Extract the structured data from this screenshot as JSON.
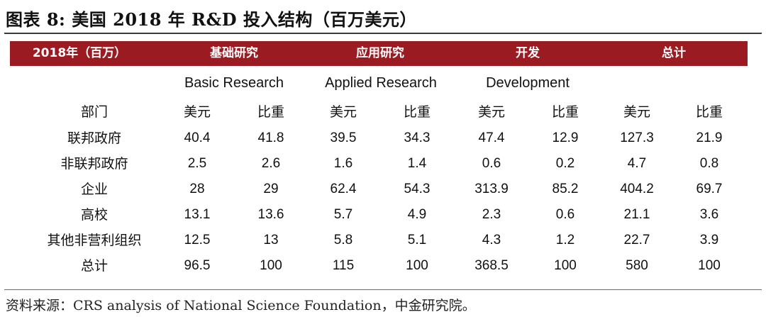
{
  "title": "图表 8: 美国 2018 年 R&D 投入结构（百万美元）",
  "table": {
    "header_row": [
      "2018年（百万）",
      "基础研究",
      "应用研究",
      "开发",
      "总计"
    ],
    "subheaders": [
      "Basic Research",
      "Applied Research",
      "Development"
    ],
    "col_labels": [
      "部门",
      "美元",
      "比重",
      "美元",
      "比重",
      "美元",
      "比重",
      "美元",
      "比重"
    ],
    "rows": [
      [
        "联邦政府",
        "40.4",
        "41.8",
        "39.5",
        "34.3",
        "47.4",
        "12.9",
        "127.3",
        "21.9"
      ],
      [
        "非联邦政府",
        "2.5",
        "2.6",
        "1.6",
        "1.4",
        "0.6",
        "0.2",
        "4.7",
        "0.8"
      ],
      [
        "企业",
        "28",
        "29",
        "62.4",
        "54.3",
        "313.9",
        "85.2",
        "404.2",
        "69.7"
      ],
      [
        "高校",
        "13.1",
        "13.6",
        "5.7",
        "4.9",
        "2.3",
        "0.6",
        "21.1",
        "3.6"
      ],
      [
        "其他非营利组织",
        "12.5",
        "13",
        "5.8",
        "5.1",
        "4.3",
        "1.2",
        "22.7",
        "3.9"
      ],
      [
        "总计",
        "96.5",
        "100",
        "115",
        "100",
        "368.5",
        "100",
        "580",
        "100"
      ]
    ]
  },
  "source": "资料来源：CRS analysis of National Science Foundation，中金研究院。",
  "colors": {
    "header_bg": "#9b1b22",
    "header_text": "#ffffff"
  }
}
